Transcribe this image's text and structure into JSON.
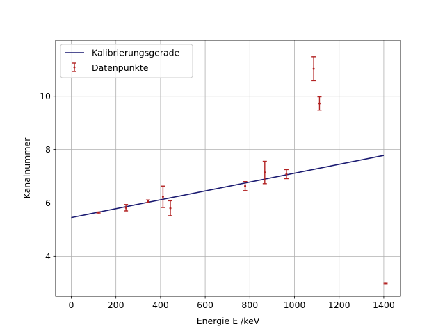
{
  "chart_data": {
    "type": "scatter",
    "title": "",
    "xlabel": "Energie E /keV",
    "ylabel": "Kanalnummer",
    "xlim": [
      -70,
      1475
    ],
    "ylim": [
      2.5,
      12.1
    ],
    "xticks": [
      0,
      200,
      400,
      600,
      800,
      1000,
      1200,
      1400
    ],
    "yticks": [
      4,
      6,
      8,
      10
    ],
    "grid": true,
    "legend_position": "top-left",
    "series": [
      {
        "name": "Kalibrierungsgerade",
        "kind": "line",
        "color": "#191970",
        "x": [
          0,
          1400
        ],
        "y": [
          5.45,
          7.78
        ]
      },
      {
        "name": "Datenpunkte",
        "kind": "errorbar",
        "color": "#b22222",
        "points": [
          {
            "x": 122,
            "y": 5.64,
            "err": 0.02
          },
          {
            "x": 245,
            "y": 5.82,
            "err": 0.12
          },
          {
            "x": 344,
            "y": 6.06,
            "err": 0.05
          },
          {
            "x": 411,
            "y": 6.23,
            "err": 0.4
          },
          {
            "x": 444,
            "y": 5.8,
            "err": 0.28
          },
          {
            "x": 779,
            "y": 6.63,
            "err": 0.17
          },
          {
            "x": 867,
            "y": 7.14,
            "err": 0.42
          },
          {
            "x": 964,
            "y": 7.08,
            "err": 0.17
          },
          {
            "x": 1086,
            "y": 11.03,
            "err": 0.45
          },
          {
            "x": 1112,
            "y": 9.73,
            "err": 0.25
          },
          {
            "x": 1408,
            "y": 2.97,
            "err": 0.02
          }
        ]
      }
    ]
  }
}
